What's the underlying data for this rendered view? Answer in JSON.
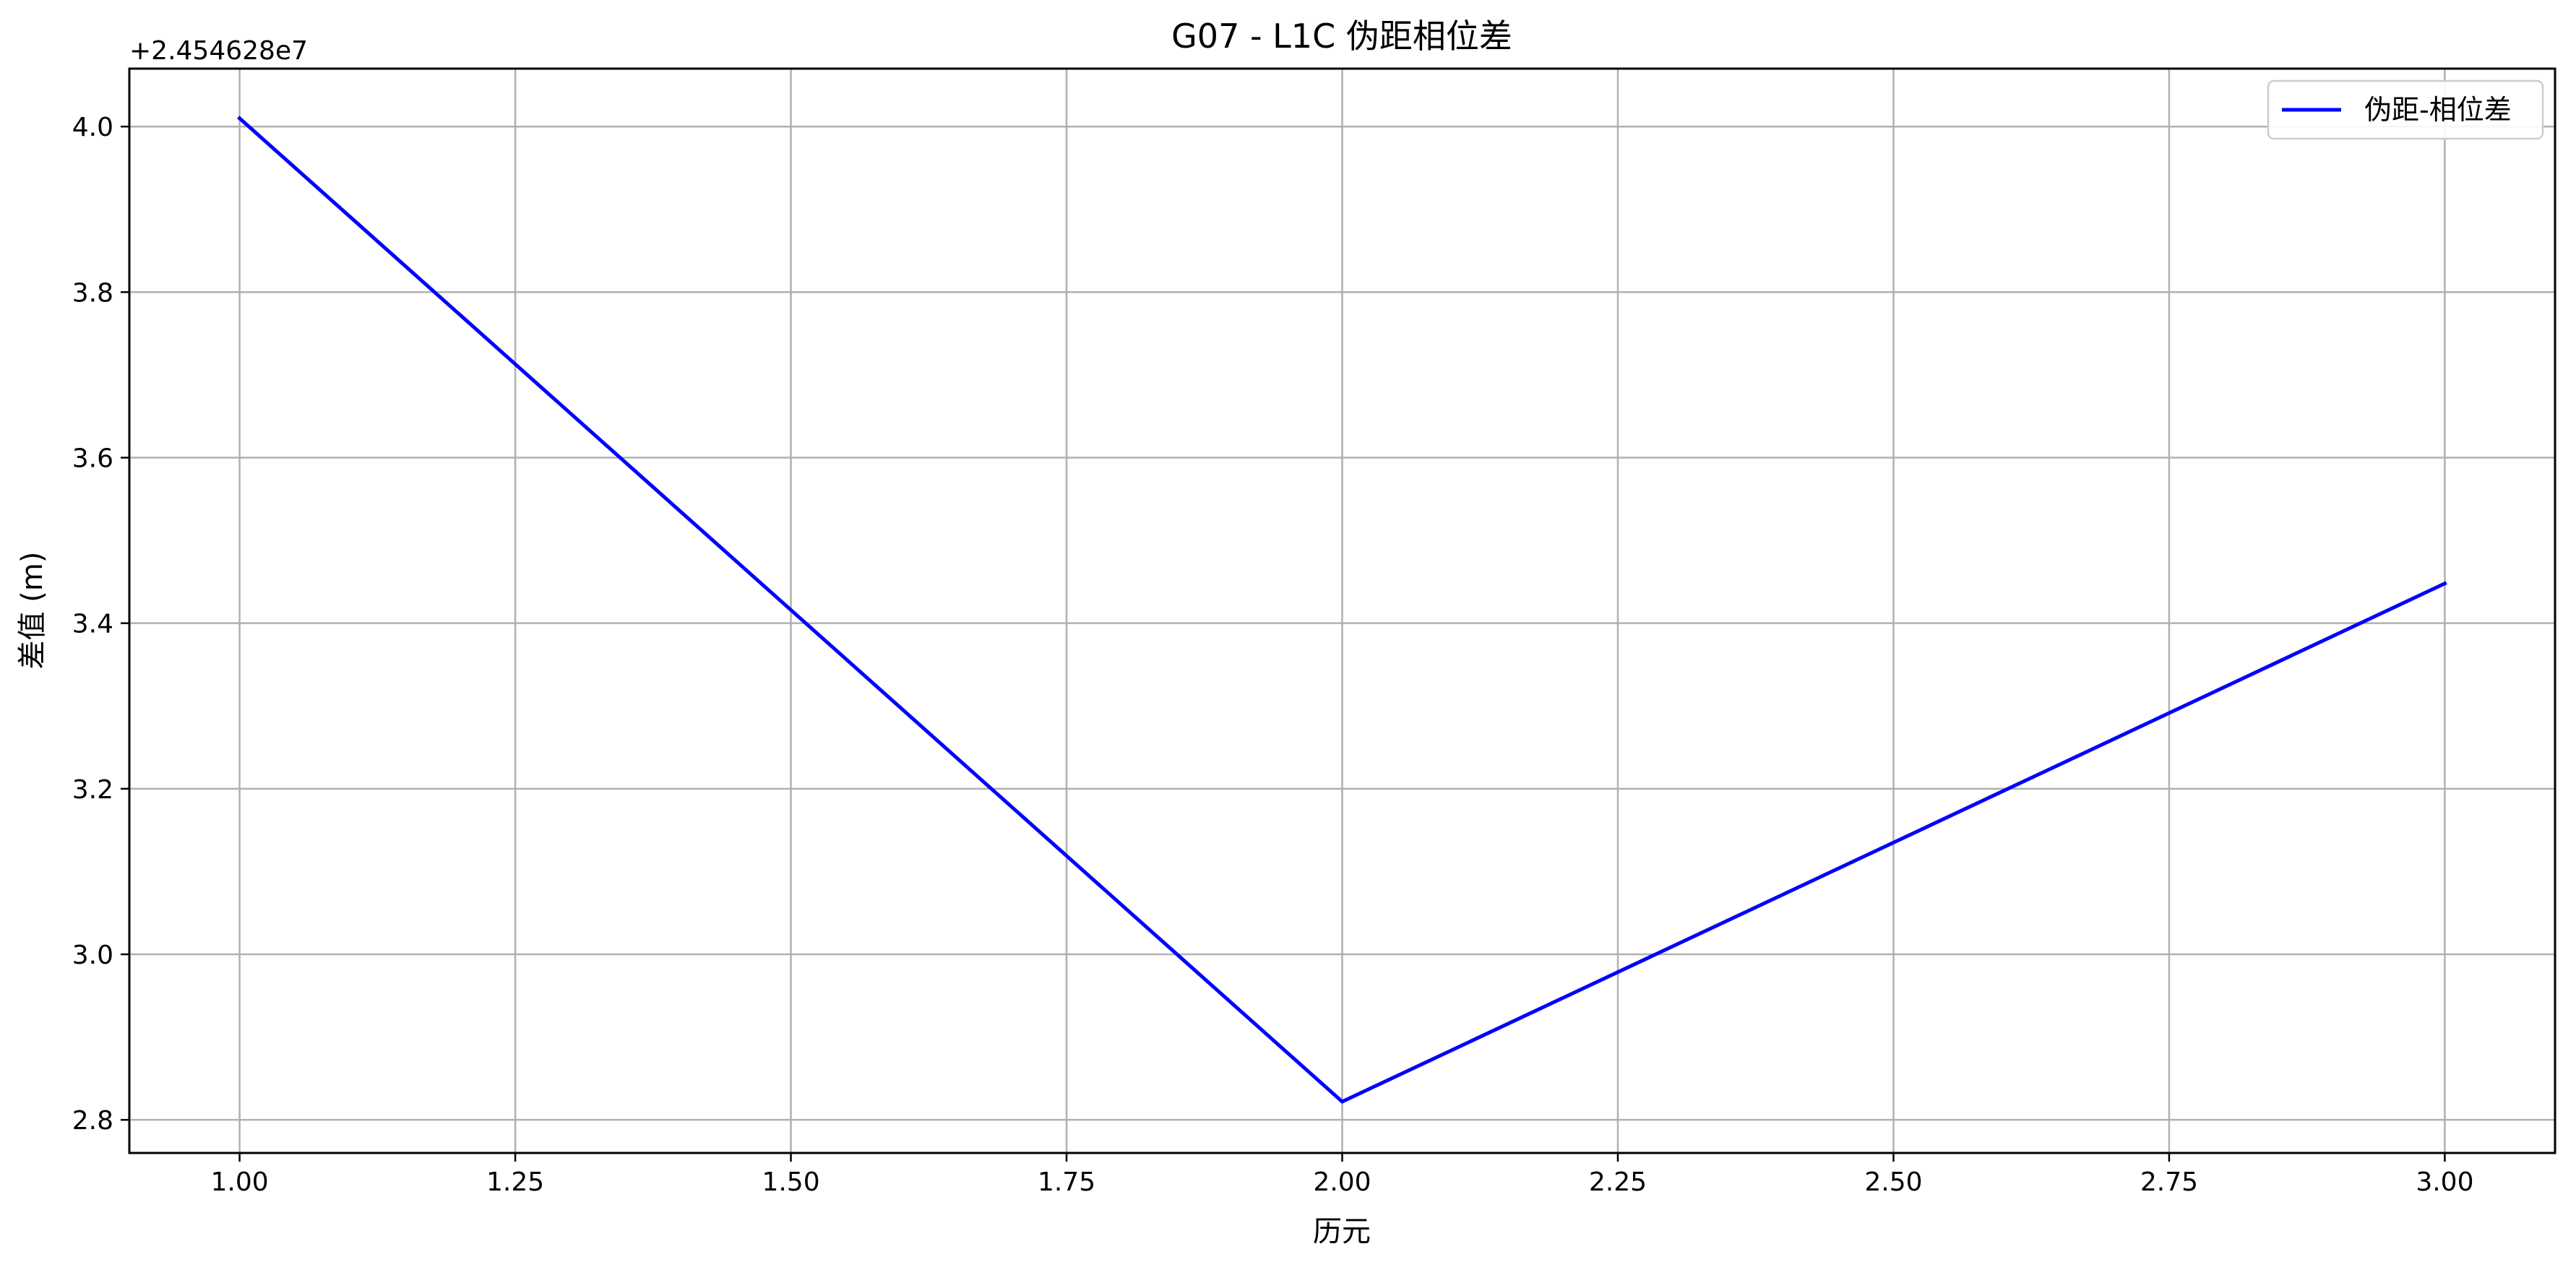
{
  "chart_data": {
    "type": "line",
    "title": "G07 - L1C 伪距相位差",
    "xlabel": "历元",
    "ylabel": "差值 (m)",
    "y_offset_label": "+2.454628e7",
    "y_offset_value": 24546280,
    "xlim": [
      0.9,
      3.1
    ],
    "ylim": [
      2.76,
      4.07
    ],
    "xticks": [
      1.0,
      1.25,
      1.5,
      1.75,
      2.0,
      2.25,
      2.5,
      2.75,
      3.0
    ],
    "xtick_labels": [
      "1.00",
      "1.25",
      "1.50",
      "1.75",
      "2.00",
      "2.25",
      "2.50",
      "2.75",
      "3.00"
    ],
    "yticks": [
      2.8,
      3.0,
      3.2,
      3.4,
      3.6,
      3.8,
      4.0
    ],
    "ytick_labels": [
      "2.8",
      "3.0",
      "3.2",
      "3.4",
      "3.6",
      "3.8",
      "4.0"
    ],
    "grid": true,
    "legend_position": "top-right",
    "series": [
      {
        "name": "伪距-相位差",
        "color": "#0000ff",
        "x": [
          1.0,
          2.0,
          3.0
        ],
        "y": [
          4.01,
          2.822,
          3.448
        ]
      }
    ]
  }
}
